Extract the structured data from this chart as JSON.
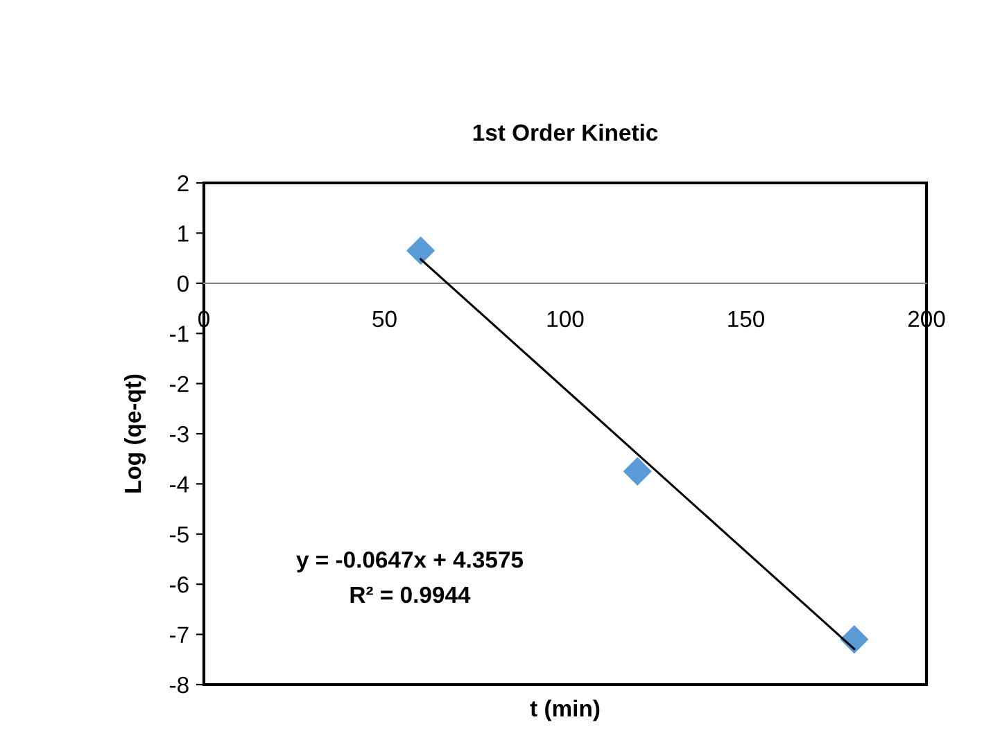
{
  "chart_data": {
    "type": "scatter",
    "title": "1st Order Kinetic",
    "xlabel": "t (min)",
    "ylabel": "Log (qe-qt)",
    "series": [
      {
        "color": "#5b9bd5",
        "x": [
          60,
          120,
          180
        ],
        "values": [
          0.65,
          -3.75,
          -7.1
        ],
        "marker": "diamond"
      },
      {
        "type": "line",
        "color": "#000000",
        "x": [
          60,
          180
        ],
        "values": [
          0.48,
          -7.29
        ],
        "line_style": "solid"
      }
    ],
    "annotations": [
      "y = -0.0647x + 4.3575",
      "R² = 0.9944"
    ],
    "xlim": [
      0,
      200
    ],
    "ylim": [
      -8,
      2
    ],
    "xticks": [
      0,
      50,
      100,
      150,
      200
    ],
    "yticks": [
      -8,
      -7,
      -6,
      -5,
      -4,
      -3,
      -2,
      -1,
      0,
      1,
      2
    ],
    "grid": false,
    "legend": false
  }
}
